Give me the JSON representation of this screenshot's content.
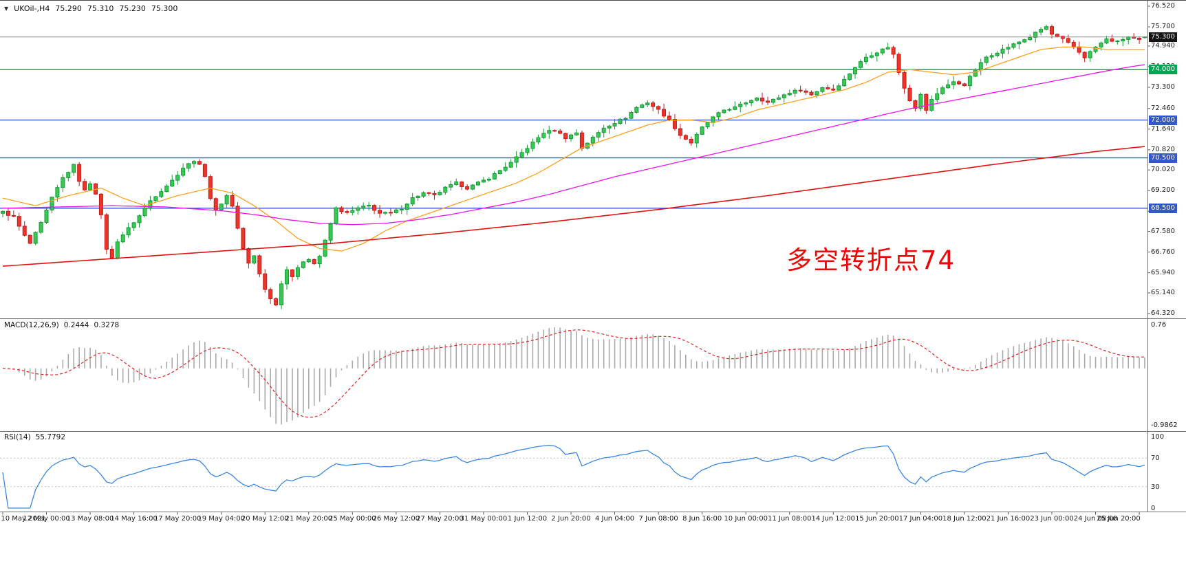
{
  "header": {
    "dropdown_icon": "▼",
    "symbol_period": "UKOil-,H4",
    "open": "75.290",
    "high": "75.310",
    "low": "75.230",
    "close": "75.300"
  },
  "annotation": {
    "text": "多空转折点74",
    "color": "#f00505"
  },
  "colors": {
    "up_stroke": "#0e9c35",
    "up_fill": "#3cc653",
    "down_stroke": "#c21b1b",
    "down_fill": "#ea3528",
    "ma_fast": "#ffa01e",
    "ma_mid": "#ef12ef",
    "ma_slow": "#e01313",
    "macd_hist": "#a9a9a9",
    "macd_signal": "#e32222",
    "rsi_line": "#3a86e0",
    "level_green": "#00a651",
    "level_blue": "#3457c9",
    "current_line": "#8a8a8a",
    "current_box": "#141414",
    "separator": "#6f6f6f",
    "axis_text": "#1c1c1c"
  },
  "chart_data": {
    "type": "candlestick",
    "symbol": "UKOil-",
    "timeframe": "H4",
    "bars": 210,
    "y_range": [
      64.32,
      76.52
    ],
    "ohlc_current": {
      "open": 75.29,
      "high": 75.31,
      "low": 75.23,
      "close": 75.3
    },
    "price_axis_labels": [
      "76.520",
      "75.700",
      "74.940",
      "74.120",
      "73.300",
      "72.460",
      "71.640",
      "70.820",
      "70.020",
      "69.200",
      "68.380",
      "67.580",
      "66.760",
      "65.940",
      "65.140",
      "64.320"
    ],
    "time_axis_labels": [
      "10 May 2021",
      "12 May 00:00",
      "13 May 08:00",
      "14 May 16:00",
      "17 May 20:00",
      "19 May 04:00",
      "20 May 12:00",
      "21 May 20:00",
      "25 May 00:00",
      "26 May 12:00",
      "27 May 20:00",
      "31 May 00:00",
      "1 Jun 12:00",
      "2 Jun 20:00",
      "4 Jun 04:00",
      "7 Jun 08:00",
      "8 Jun 16:00",
      "10 Jun 00:00",
      "11 Jun 08:00",
      "14 Jun 12:00",
      "15 Jun 20:00",
      "17 Jun 04:00",
      "18 Jun 12:00",
      "21 Jun 16:00",
      "23 Jun 00:00",
      "24 Jun 08:00",
      "25 Jun 20:00"
    ],
    "close_waypoints": [
      [
        0,
        68.35
      ],
      [
        2,
        68.15
      ],
      [
        4,
        67.4
      ],
      [
        5,
        67.1
      ],
      [
        7,
        67.9
      ],
      [
        9,
        68.9
      ],
      [
        11,
        69.7
      ],
      [
        13,
        70.2
      ],
      [
        14,
        69.6
      ],
      [
        15,
        69.2
      ],
      [
        16,
        69.5
      ],
      [
        17,
        69.1
      ],
      [
        18,
        68.2
      ],
      [
        19,
        66.9
      ],
      [
        20,
        66.5
      ],
      [
        21,
        67.2
      ],
      [
        23,
        67.7
      ],
      [
        25,
        68.2
      ],
      [
        27,
        68.8
      ],
      [
        29,
        69.2
      ],
      [
        31,
        69.6
      ],
      [
        33,
        70.1
      ],
      [
        35,
        70.4
      ],
      [
        36,
        70.2
      ],
      [
        37,
        69.8
      ],
      [
        38,
        68.9
      ],
      [
        39,
        68.4
      ],
      [
        41,
        69.0
      ],
      [
        42,
        68.6
      ],
      [
        43,
        67.7
      ],
      [
        44,
        66.9
      ],
      [
        45,
        66.3
      ],
      [
        46,
        66.6
      ],
      [
        47,
        65.9
      ],
      [
        48,
        65.3
      ],
      [
        49,
        64.9
      ],
      [
        50,
        64.7
      ],
      [
        51,
        65.5
      ],
      [
        52,
        66.1
      ],
      [
        53,
        65.8
      ],
      [
        54,
        66.1
      ],
      [
        55,
        66.4
      ],
      [
        56,
        66.5
      ],
      [
        57,
        66.3
      ],
      [
        58,
        66.6
      ],
      [
        59,
        67.2
      ],
      [
        60,
        67.9
      ],
      [
        61,
        68.5
      ],
      [
        63,
        68.3
      ],
      [
        65,
        68.5
      ],
      [
        67,
        68.6
      ],
      [
        69,
        68.3
      ],
      [
        71,
        68.3
      ],
      [
        73,
        68.5
      ],
      [
        75,
        68.9
      ],
      [
        77,
        69.1
      ],
      [
        79,
        69.0
      ],
      [
        81,
        69.3
      ],
      [
        83,
        69.5
      ],
      [
        85,
        69.3
      ],
      [
        87,
        69.5
      ],
      [
        89,
        69.7
      ],
      [
        91,
        70.0
      ],
      [
        93,
        70.3
      ],
      [
        95,
        70.7
      ],
      [
        97,
        71.1
      ],
      [
        99,
        71.5
      ],
      [
        101,
        71.6
      ],
      [
        103,
        71.3
      ],
      [
        105,
        71.5
      ],
      [
        106,
        70.9
      ],
      [
        108,
        71.3
      ],
      [
        110,
        71.7
      ],
      [
        112,
        71.9
      ],
      [
        114,
        72.1
      ],
      [
        116,
        72.5
      ],
      [
        118,
        72.7
      ],
      [
        120,
        72.4
      ],
      [
        122,
        72.0
      ],
      [
        124,
        71.4
      ],
      [
        126,
        71.1
      ],
      [
        128,
        71.7
      ],
      [
        130,
        72.1
      ],
      [
        132,
        72.4
      ],
      [
        134,
        72.5
      ],
      [
        136,
        72.7
      ],
      [
        138,
        72.9
      ],
      [
        140,
        72.7
      ],
      [
        142,
        72.9
      ],
      [
        144,
        73.1
      ],
      [
        146,
        73.2
      ],
      [
        148,
        73.0
      ],
      [
        150,
        73.3
      ],
      [
        152,
        73.2
      ],
      [
        154,
        73.6
      ],
      [
        156,
        74.1
      ],
      [
        158,
        74.5
      ],
      [
        160,
        74.7
      ],
      [
        162,
        74.9
      ],
      [
        163,
        74.6
      ],
      [
        164,
        73.9
      ],
      [
        165,
        73.3
      ],
      [
        166,
        72.8
      ],
      [
        167,
        72.5
      ],
      [
        168,
        73.0
      ],
      [
        169,
        72.4
      ],
      [
        170,
        72.8
      ],
      [
        172,
        73.3
      ],
      [
        174,
        73.5
      ],
      [
        176,
        73.4
      ],
      [
        178,
        74.0
      ],
      [
        180,
        74.5
      ],
      [
        182,
        74.7
      ],
      [
        184,
        74.9
      ],
      [
        186,
        75.1
      ],
      [
        188,
        75.3
      ],
      [
        190,
        75.6
      ],
      [
        191,
        75.7
      ],
      [
        192,
        75.4
      ],
      [
        194,
        75.2
      ],
      [
        196,
        74.9
      ],
      [
        198,
        74.5
      ],
      [
        200,
        74.9
      ],
      [
        202,
        75.2
      ],
      [
        204,
        75.1
      ],
      [
        206,
        75.3
      ],
      [
        208,
        75.2
      ],
      [
        209,
        75.3
      ]
    ],
    "moving_averages": [
      {
        "name": "ma-fast-orange",
        "color_key": "ma_fast",
        "width": 1.3,
        "points": [
          [
            0,
            68.9
          ],
          [
            6,
            68.6
          ],
          [
            12,
            69.0
          ],
          [
            18,
            69.3
          ],
          [
            22,
            68.9
          ],
          [
            26,
            68.6
          ],
          [
            32,
            69.0
          ],
          [
            38,
            69.3
          ],
          [
            42,
            69.1
          ],
          [
            46,
            68.6
          ],
          [
            50,
            68.0
          ],
          [
            54,
            67.3
          ],
          [
            58,
            66.9
          ],
          [
            62,
            66.8
          ],
          [
            66,
            67.1
          ],
          [
            70,
            67.6
          ],
          [
            74,
            68.0
          ],
          [
            78,
            68.3
          ],
          [
            82,
            68.6
          ],
          [
            86,
            68.9
          ],
          [
            90,
            69.2
          ],
          [
            94,
            69.5
          ],
          [
            98,
            69.9
          ],
          [
            102,
            70.4
          ],
          [
            106,
            70.9
          ],
          [
            110,
            71.2
          ],
          [
            114,
            71.5
          ],
          [
            118,
            71.8
          ],
          [
            122,
            72.0
          ],
          [
            126,
            72.0
          ],
          [
            130,
            71.9
          ],
          [
            134,
            72.1
          ],
          [
            138,
            72.4
          ],
          [
            142,
            72.6
          ],
          [
            146,
            72.8
          ],
          [
            150,
            73.0
          ],
          [
            154,
            73.2
          ],
          [
            158,
            73.5
          ],
          [
            162,
            73.9
          ],
          [
            166,
            74.0
          ],
          [
            170,
            73.9
          ],
          [
            174,
            73.8
          ],
          [
            178,
            73.9
          ],
          [
            182,
            74.2
          ],
          [
            186,
            74.5
          ],
          [
            190,
            74.8
          ],
          [
            194,
            74.9
          ],
          [
            198,
            74.9
          ],
          [
            202,
            74.8
          ],
          [
            206,
            74.8
          ],
          [
            209,
            74.8
          ]
        ]
      },
      {
        "name": "ma-mid-magenta",
        "color_key": "ma_mid",
        "width": 1.3,
        "points": [
          [
            0,
            68.5
          ],
          [
            10,
            68.55
          ],
          [
            20,
            68.6
          ],
          [
            30,
            68.55
          ],
          [
            40,
            68.4
          ],
          [
            46,
            68.25
          ],
          [
            52,
            68.05
          ],
          [
            58,
            67.9
          ],
          [
            64,
            67.85
          ],
          [
            70,
            67.9
          ],
          [
            76,
            68.05
          ],
          [
            82,
            68.25
          ],
          [
            88,
            68.5
          ],
          [
            94,
            68.75
          ],
          [
            100,
            69.05
          ],
          [
            106,
            69.4
          ],
          [
            112,
            69.75
          ],
          [
            118,
            70.05
          ],
          [
            124,
            70.35
          ],
          [
            130,
            70.65
          ],
          [
            136,
            70.95
          ],
          [
            142,
            71.25
          ],
          [
            148,
            71.55
          ],
          [
            154,
            71.85
          ],
          [
            160,
            72.15
          ],
          [
            166,
            72.45
          ],
          [
            172,
            72.7
          ],
          [
            178,
            72.95
          ],
          [
            184,
            73.2
          ],
          [
            190,
            73.45
          ],
          [
            196,
            73.7
          ],
          [
            202,
            73.95
          ],
          [
            206,
            74.1
          ],
          [
            209,
            74.2
          ]
        ]
      },
      {
        "name": "ma-slow-red",
        "color_key": "ma_slow",
        "width": 1.6,
        "points": [
          [
            0,
            66.2
          ],
          [
            20,
            66.5
          ],
          [
            40,
            66.8
          ],
          [
            60,
            67.1
          ],
          [
            80,
            67.5
          ],
          [
            100,
            67.95
          ],
          [
            120,
            68.45
          ],
          [
            140,
            69.0
          ],
          [
            160,
            69.6
          ],
          [
            180,
            70.2
          ],
          [
            200,
            70.75
          ],
          [
            209,
            70.95
          ]
        ]
      }
    ],
    "levels": [
      {
        "price": 74.0,
        "label": "74.000",
        "color": "#00a651"
      },
      {
        "price": 72.0,
        "label": "72.000",
        "color": "#3457c9"
      },
      {
        "price": 70.5,
        "label": "70.500",
        "color": "#3457c9"
      },
      {
        "price": 68.5,
        "label": "68.500",
        "color": "#3457c9"
      }
    ],
    "current_price": {
      "value": 75.3,
      "label": "75.300"
    },
    "indicators": {
      "macd": {
        "name": "MACD(12,26,9)",
        "fast": 12,
        "slow": 26,
        "signal": 9,
        "value_main": "0.2444",
        "value_signal": "0.3278",
        "axis_max_label": "0.76",
        "axis_min_label": "-0.9862"
      },
      "rsi": {
        "name": "RSI(14)",
        "period": 14,
        "value": "55.7792",
        "axis_labels": [
          100,
          70,
          30,
          0
        ],
        "level_lines": [
          70,
          30
        ]
      }
    }
  }
}
